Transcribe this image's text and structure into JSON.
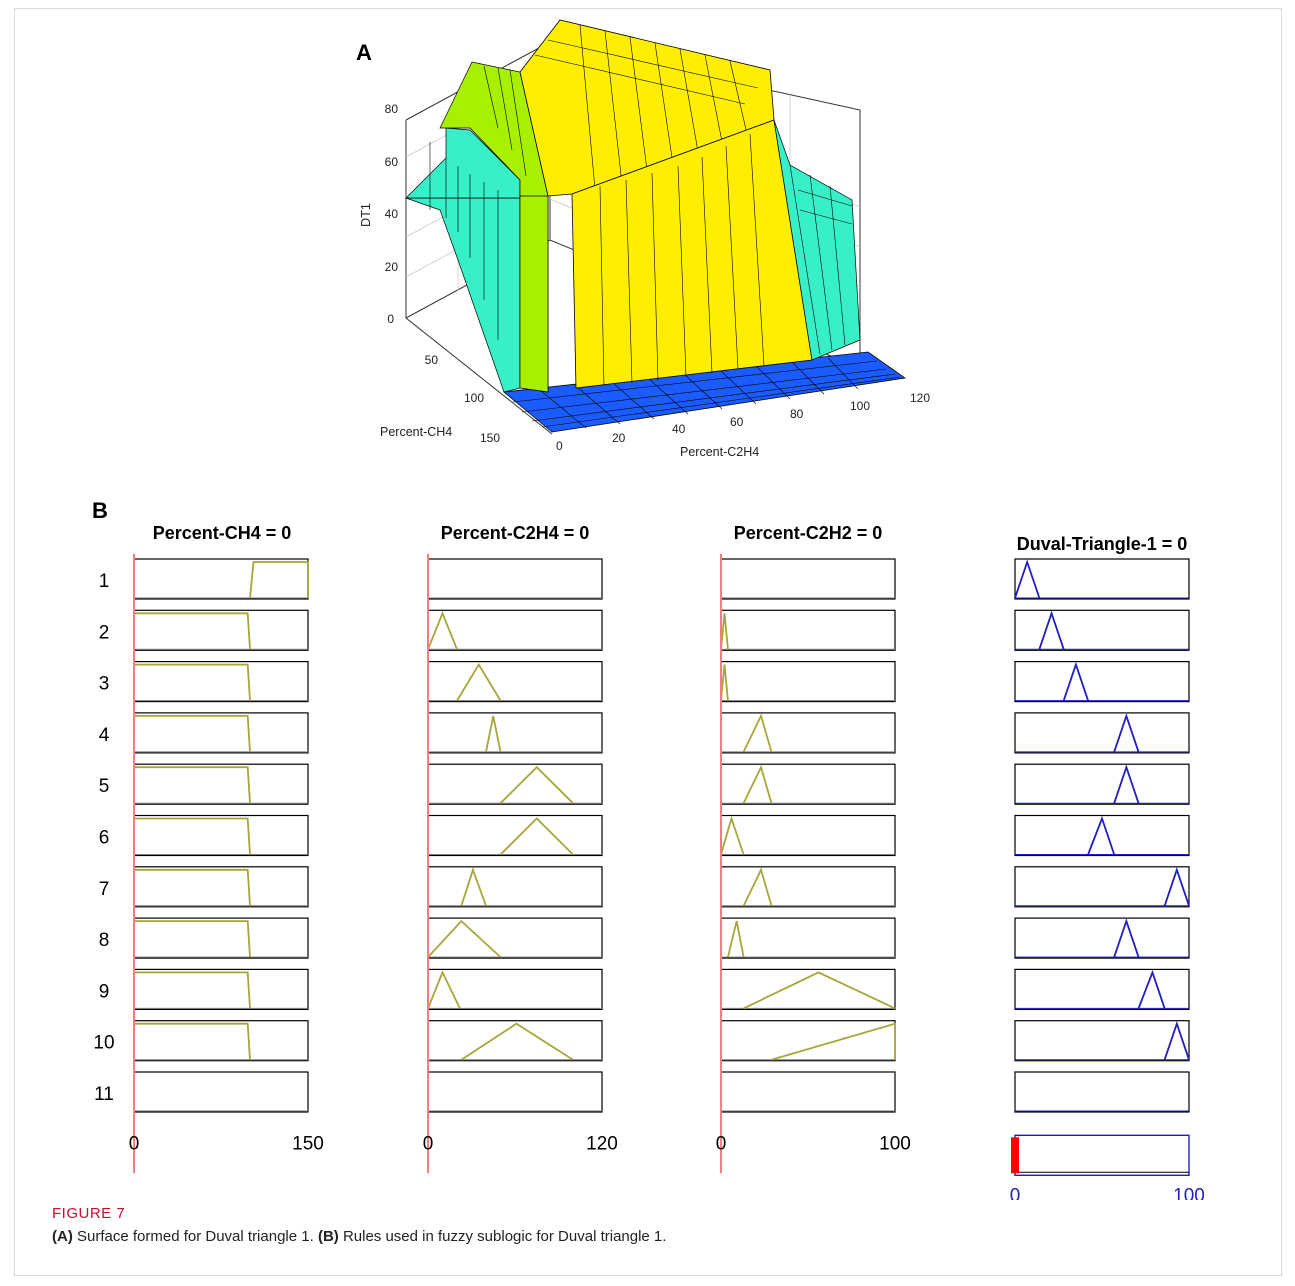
{
  "panelA": {
    "letter": "A",
    "zlabel": "DT1",
    "xlabel": "Percent-C2H4",
    "ylabel": "Percent-CH4",
    "zticks": [
      "0",
      "20",
      "40",
      "60",
      "80"
    ],
    "xticks": [
      "0",
      "20",
      "40",
      "60",
      "80",
      "100",
      "120"
    ],
    "yticks": [
      "50",
      "100",
      "150"
    ]
  },
  "panelB": {
    "letter": "B",
    "rule_numbers": [
      "1",
      "2",
      "3",
      "4",
      "5",
      "6",
      "7",
      "8",
      "9",
      "10",
      "11"
    ],
    "columns": [
      {
        "title": "Percent-CH4 = 0",
        "range_min": "0",
        "range_max": "150",
        "color": "#a6a63a"
      },
      {
        "title": "Percent-C2H4 = 0",
        "range_min": "0",
        "range_max": "120",
        "color": "#a6a63a"
      },
      {
        "title": "Percent-C2H2 = 0",
        "range_min": "0",
        "range_max": "100",
        "color": "#a6a63a"
      },
      {
        "title": "Duval-Triangle-1 = 0",
        "range_min": "0",
        "range_max": "100",
        "color": "#1f1fbf"
      }
    ]
  },
  "chart_data": [
    {
      "type": "surface",
      "title": "",
      "xlabel": "Percent-C2H4",
      "ylabel": "Percent-CH4",
      "zlabel": "DT1",
      "xlim": [
        0,
        120
      ],
      "ylim": [
        0,
        150
      ],
      "zlim": [
        0,
        90
      ],
      "colors": {
        "low": "#1a5cff",
        "mid": "#38f0c8",
        "high_green": "#a8f000",
        "top": "#ffee00"
      }
    },
    {
      "type": "rule-viewer",
      "rules": 11,
      "mf": {
        "ch4": [
          {
            "rule": 1,
            "shape": "trap",
            "params": [
              100,
              103,
              150,
              150
            ]
          },
          {
            "rule": 2,
            "shape": "trap",
            "params": [
              0,
              0,
              98,
              100
            ]
          },
          {
            "rule": 3,
            "shape": "trap",
            "params": [
              0,
              0,
              98,
              100
            ]
          },
          {
            "rule": 4,
            "shape": "trap",
            "params": [
              0,
              0,
              98,
              100
            ]
          },
          {
            "rule": 5,
            "shape": "trap",
            "params": [
              0,
              0,
              98,
              100
            ]
          },
          {
            "rule": 6,
            "shape": "trap",
            "params": [
              0,
              0,
              98,
              100
            ]
          },
          {
            "rule": 7,
            "shape": "trap",
            "params": [
              0,
              0,
              98,
              100
            ]
          },
          {
            "rule": 8,
            "shape": "trap",
            "params": [
              0,
              0,
              98,
              100
            ]
          },
          {
            "rule": 9,
            "shape": "trap",
            "params": [
              0,
              0,
              98,
              100
            ]
          },
          {
            "rule": 10,
            "shape": "trap",
            "params": [
              0,
              0,
              98,
              100
            ]
          }
        ],
        "c2h4": [
          {
            "rule": 2,
            "shape": "tri",
            "params": [
              0,
              10,
              20
            ]
          },
          {
            "rule": 3,
            "shape": "tri",
            "params": [
              20,
              35,
              50
            ]
          },
          {
            "rule": 4,
            "shape": "tri",
            "params": [
              40,
              45,
              50
            ]
          },
          {
            "rule": 5,
            "shape": "tri",
            "params": [
              50,
              75,
              100
            ]
          },
          {
            "rule": 6,
            "shape": "tri",
            "params": [
              50,
              75,
              100
            ]
          },
          {
            "rule": 7,
            "shape": "tri",
            "params": [
              23,
              31,
              40
            ]
          },
          {
            "rule": 8,
            "shape": "tri",
            "params": [
              0,
              23,
              50
            ]
          },
          {
            "rule": 9,
            "shape": "tri",
            "params": [
              0,
              10,
              22
            ]
          },
          {
            "rule": 10,
            "shape": "tri",
            "params": [
              23,
              61,
              100
            ]
          }
        ],
        "c2h2": [
          {
            "rule": 2,
            "shape": "tri",
            "params": [
              0,
              2,
              4
            ]
          },
          {
            "rule": 3,
            "shape": "tri",
            "params": [
              0,
              2,
              4
            ]
          },
          {
            "rule": 4,
            "shape": "tri",
            "params": [
              13,
              23,
              29
            ]
          },
          {
            "rule": 5,
            "shape": "tri",
            "params": [
              13,
              23,
              29
            ]
          },
          {
            "rule": 6,
            "shape": "tri",
            "params": [
              0,
              6,
              13
            ]
          },
          {
            "rule": 7,
            "shape": "tri",
            "params": [
              13,
              23,
              29
            ]
          },
          {
            "rule": 8,
            "shape": "tri",
            "params": [
              4,
              9,
              13
            ]
          },
          {
            "rule": 9,
            "shape": "tri",
            "params": [
              13,
              56,
              100
            ]
          },
          {
            "rule": 10,
            "shape": "tri",
            "params": [
              29,
              100,
              100
            ]
          }
        ],
        "dt1": [
          {
            "rule": 1,
            "shape": "tri",
            "params": [
              0,
              7,
              14
            ]
          },
          {
            "rule": 2,
            "shape": "tri",
            "params": [
              14,
              21,
              28
            ]
          },
          {
            "rule": 3,
            "shape": "tri",
            "params": [
              28,
              35,
              42
            ]
          },
          {
            "rule": 4,
            "shape": "tri",
            "params": [
              57,
              64,
              71
            ]
          },
          {
            "rule": 5,
            "shape": "tri",
            "params": [
              57,
              64,
              71
            ]
          },
          {
            "rule": 6,
            "shape": "tri",
            "params": [
              42,
              50,
              57
            ]
          },
          {
            "rule": 7,
            "shape": "tri",
            "params": [
              86,
              93,
              100
            ]
          },
          {
            "rule": 8,
            "shape": "tri",
            "params": [
              57,
              64,
              71
            ]
          },
          {
            "rule": 9,
            "shape": "tri",
            "params": [
              71,
              79,
              86
            ]
          },
          {
            "rule": 10,
            "shape": "tri",
            "params": [
              86,
              93,
              100
            ]
          }
        ]
      },
      "inputs": {
        "Percent-CH4": 0,
        "Percent-C2H4": 0,
        "Percent-C2H2": 0
      },
      "output": {
        "Duval-Triangle-1": 0
      }
    }
  ],
  "caption": {
    "label": "FIGURE 7",
    "a_tag": "(A)",
    "a_text": " Surface formed for Duval triangle 1. ",
    "b_tag": "(B)",
    "b_text": " Rules used in fuzzy sublogic for Duval triangle 1."
  }
}
